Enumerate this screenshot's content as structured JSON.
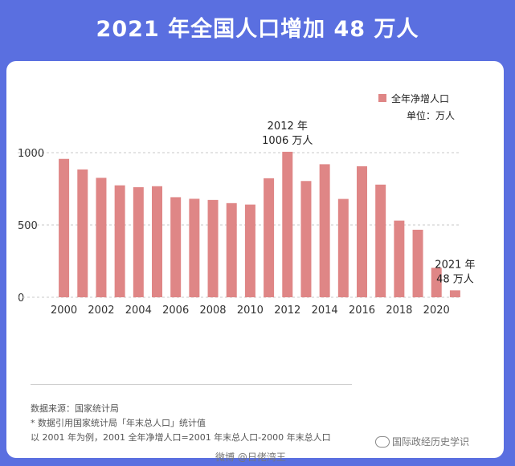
{
  "title": "2021 年全国人口增加 48 万人",
  "chart_data": {
    "type": "bar",
    "categories": [
      "2000",
      "2001",
      "2002",
      "2003",
      "2004",
      "2005",
      "2006",
      "2007",
      "2008",
      "2009",
      "2010",
      "2011",
      "2012",
      "2013",
      "2014",
      "2015",
      "2016",
      "2017",
      "2018",
      "2019",
      "2020",
      "2021"
    ],
    "x_tick_labels": [
      "2000",
      "2002",
      "2004",
      "2006",
      "2008",
      "2010",
      "2012",
      "2014",
      "2016",
      "2018",
      "2020"
    ],
    "series": [
      {
        "name": "全年净增人口",
        "values": [
          957,
          884,
          826,
          774,
          761,
          768,
          692,
          681,
          673,
          651,
          641,
          823,
          1006,
          804,
          920,
          680,
          906,
          779,
          530,
          467,
          204,
          48
        ],
        "color": "#df8686"
      }
    ],
    "ylim": [
      0,
      1100
    ],
    "yticks": [
      0,
      500,
      1000
    ],
    "legend_label": "全年净增人口",
    "unit_label": "单位：万人",
    "annotations": [
      {
        "category": "2012",
        "lines": [
          "2012 年",
          "1006 万人"
        ]
      },
      {
        "category": "2021",
        "lines": [
          "2021 年",
          "48 万人"
        ]
      }
    ],
    "grid": true,
    "legend_position": "top-right"
  },
  "footer": {
    "source": "数据来源：国家统计局",
    "note1": "* 数据引用国家统计局「年末总人口」统计值",
    "note2": "以 2001 年为例，2001 全年净增人口=2001 年末总人口-2000 年末总人口"
  },
  "watermark": {
    "brand": "国际政经历史学识",
    "weibo": "微博 @日佬湾王"
  }
}
